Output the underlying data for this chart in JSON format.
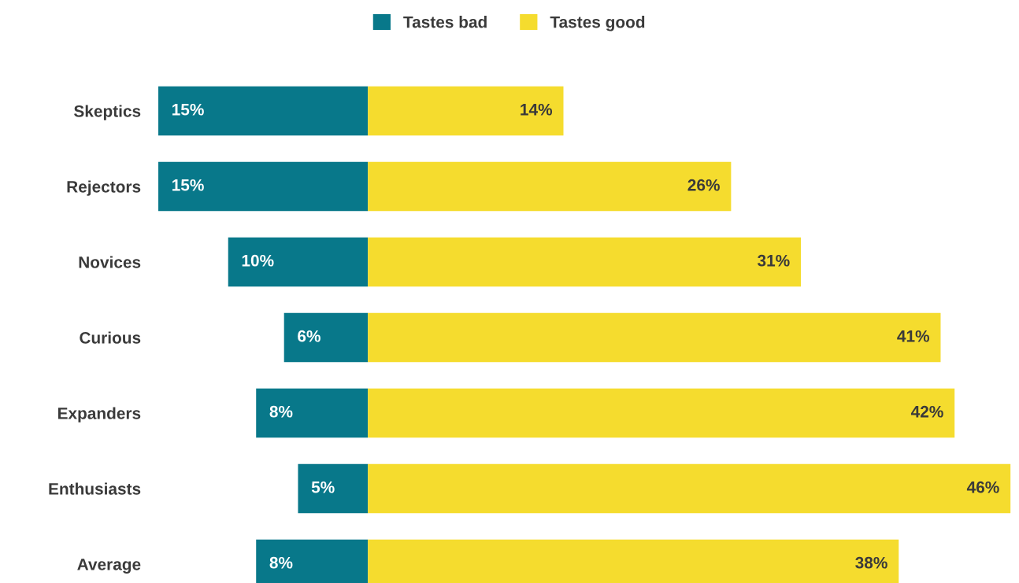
{
  "chart_data": {
    "type": "bar",
    "orientation": "horizontal",
    "stacked": true,
    "categories": [
      "Skeptics",
      "Rejectors",
      "Novices",
      "Curious",
      "Expanders",
      "Enthusiasts",
      "Average"
    ],
    "series": [
      {
        "name": "Tastes bad",
        "color": "#08788a",
        "values": [
          -15,
          -15,
          -10,
          -6,
          -8,
          -5,
          -8
        ]
      },
      {
        "name": "Tastes good",
        "color": "#f5dc2e",
        "values": [
          14,
          26,
          31,
          41,
          42,
          46,
          38
        ],
        "value_labels": [
          "14%",
          "26%",
          "31%",
          "41%",
          "42%",
          "46%",
          "38%"
        ]
      }
    ],
    "annotations": [
      {
        "text": "15%",
        "x": -15,
        "y": "Skeptics"
      },
      {
        "text": "15%",
        "x": -15,
        "y": "Rejectors"
      },
      {
        "text": "10%",
        "x": -10,
        "y": "Novices"
      },
      {
        "text": "6%",
        "x": -6,
        "y": "Curious"
      },
      {
        "text": "8%",
        "x": -8,
        "y": "Expanders"
      },
      {
        "text": "5%",
        "x": -5,
        "y": "Enthusiasts"
      },
      {
        "text": "8%",
        "x": -8,
        "y": "Average"
      }
    ],
    "tick_labels": "y",
    "grid": false,
    "legend": "top"
  }
}
